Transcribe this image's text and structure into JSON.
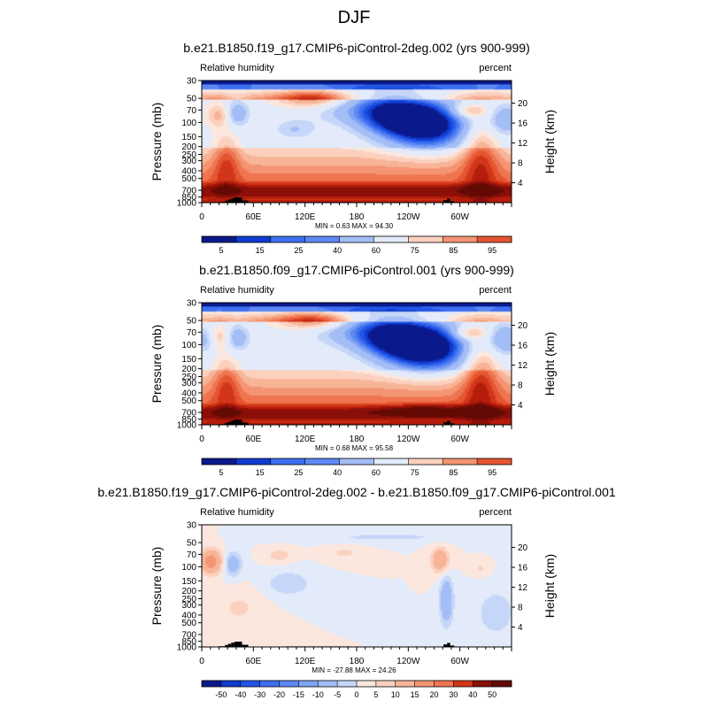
{
  "figure": {
    "title": "DJF"
  },
  "chart_data": [
    {
      "type": "heatmap",
      "title": "b.e21.B1850.f19_g17.CMIP6-piControl-2deg.002 (yrs 900-999)",
      "left_label": "Relative humidity",
      "right_label": "percent",
      "ylabel": "Pressure (mb)",
      "ylabel_right": "Height (km)",
      "x_ticks": [
        "0",
        "60E",
        "120E",
        "180",
        "120W",
        "60W"
      ],
      "y_ticks": [
        "30",
        "50",
        "70",
        "100",
        "150",
        "200",
        "250",
        "300",
        "400",
        "500",
        "700",
        "850",
        "1000"
      ],
      "y_ticks_right": [
        "20",
        "16",
        "12",
        "8",
        "4"
      ],
      "stats": "MIN =  0.63  MAX =  94.30",
      "colorbar_levels": [
        "5",
        "15",
        "25",
        "40",
        "60",
        "75",
        "85",
        "95"
      ],
      "colors": [
        "#0a1a8c",
        "#0f3bcf",
        "#2155e6",
        "#3d6ff0",
        "#5d89f4",
        "#7fa3f6",
        "#a3bdf7",
        "#c6d6f8",
        "#e3ebfa",
        "#fbe7de",
        "#fbd0bd",
        "#f8b497",
        "#f49472",
        "#ef7450",
        "#e45530",
        "#d13618",
        "#b41c0b",
        "#8a0f08",
        "#640a05"
      ],
      "fields": [
        {
          "name": "blob",
          "x": 0.73,
          "y": 0.37,
          "sx": 0.09,
          "sy": 0.13,
          "a": -58
        },
        {
          "name": "blob",
          "x": 0.62,
          "y": 0.3,
          "sx": 0.08,
          "sy": 0.11,
          "a": -35
        },
        {
          "name": "blob",
          "x": 0.55,
          "y": 0.22,
          "sx": 0.12,
          "sy": 0.1,
          "a": -22
        },
        {
          "name": "blob",
          "x": 0.11,
          "y": 0.27,
          "sx": 0.03,
          "sy": 0.08,
          "a": -22
        },
        {
          "name": "blob",
          "x": 0.98,
          "y": 0.32,
          "sx": 0.04,
          "sy": 0.09,
          "a": -20
        },
        {
          "name": "blob",
          "x": 0.3,
          "y": 0.4,
          "sx": 0.05,
          "sy": 0.06,
          "a": -12
        },
        {
          "name": "blob",
          "x": 0.36,
          "y": 0.15,
          "sx": 0.08,
          "sy": 0.05,
          "a": 25
        },
        {
          "name": "blob",
          "x": 0.86,
          "y": 0.25,
          "sx": 0.04,
          "sy": 0.04,
          "a": 20
        },
        {
          "name": "blob",
          "x": 0.06,
          "y": 0.28,
          "sx": 0.03,
          "sy": 0.07,
          "a": 18
        },
        {
          "name": "blob",
          "x": 0.9,
          "y": 0.62,
          "sx": 0.04,
          "sy": 0.22,
          "a": 22
        },
        {
          "name": "blob",
          "x": 0.08,
          "y": 0.66,
          "sx": 0.03,
          "sy": 0.16,
          "a": 18
        }
      ],
      "terrain": [
        {
          "from": 0.055,
          "to": 0.075,
          "p": 980
        },
        {
          "from": 0.075,
          "to": 0.085,
          "p": 945
        },
        {
          "from": 0.085,
          "to": 0.095,
          "p": 915
        },
        {
          "from": 0.095,
          "to": 0.105,
          "p": 885
        },
        {
          "from": 0.105,
          "to": 0.13,
          "p": 860
        },
        {
          "from": 0.13,
          "to": 0.15,
          "p": 940
        },
        {
          "from": 0.27,
          "to": 0.48,
          "p": 985
        },
        {
          "from": 0.78,
          "to": 0.792,
          "p": 930
        },
        {
          "from": 0.792,
          "to": 0.802,
          "p": 890
        },
        {
          "from": 0.802,
          "to": 0.815,
          "p": 960
        }
      ]
    },
    {
      "type": "heatmap",
      "title": "b.e21.B1850.f09_g17.CMIP6-piControl.001 (yrs 900-999)",
      "left_label": "Relative humidity",
      "right_label": "percent",
      "ylabel": "Pressure (mb)",
      "ylabel_right": "Height (km)",
      "x_ticks": [
        "0",
        "60E",
        "120E",
        "180",
        "120W",
        "60W"
      ],
      "y_ticks": [
        "30",
        "50",
        "70",
        "100",
        "150",
        "200",
        "250",
        "300",
        "400",
        "500",
        "700",
        "850",
        "1000"
      ],
      "y_ticks_right": [
        "20",
        "16",
        "12",
        "8",
        "4"
      ],
      "stats": "MIN =  0.68  MAX =  95.58",
      "colorbar_levels": [
        "5",
        "15",
        "25",
        "40",
        "60",
        "75",
        "85",
        "95"
      ],
      "colors": [
        "#0a1a8c",
        "#0f3bcf",
        "#2155e6",
        "#3d6ff0",
        "#5d89f4",
        "#7fa3f6",
        "#a3bdf7",
        "#c6d6f8",
        "#e3ebfa",
        "#fbe7de",
        "#fbd0bd",
        "#f8b497",
        "#f49472",
        "#ef7450",
        "#e45530",
        "#d13618",
        "#b41c0b",
        "#8a0f08",
        "#640a05"
      ],
      "fields": [
        {
          "name": "blob",
          "x": 0.73,
          "y": 0.37,
          "sx": 0.09,
          "sy": 0.13,
          "a": -62
        },
        {
          "name": "blob",
          "x": 0.62,
          "y": 0.3,
          "sx": 0.08,
          "sy": 0.11,
          "a": -38
        },
        {
          "name": "blob",
          "x": 0.54,
          "y": 0.22,
          "sx": 0.12,
          "sy": 0.1,
          "a": -24
        },
        {
          "name": "blob",
          "x": 0.11,
          "y": 0.29,
          "sx": 0.03,
          "sy": 0.08,
          "a": -22
        },
        {
          "name": "blob",
          "x": 0.01,
          "y": 0.3,
          "sx": 0.03,
          "sy": 0.08,
          "a": -18
        },
        {
          "name": "blob",
          "x": 0.98,
          "y": 0.3,
          "sx": 0.04,
          "sy": 0.09,
          "a": -22
        },
        {
          "name": "blob",
          "x": 0.36,
          "y": 0.15,
          "sx": 0.08,
          "sy": 0.05,
          "a": 25
        },
        {
          "name": "blob",
          "x": 0.86,
          "y": 0.25,
          "sx": 0.04,
          "sy": 0.04,
          "a": 20
        },
        {
          "name": "blob",
          "x": 0.06,
          "y": 0.28,
          "sx": 0.03,
          "sy": 0.07,
          "a": 18
        },
        {
          "name": "blob",
          "x": 0.9,
          "y": 0.62,
          "sx": 0.04,
          "sy": 0.22,
          "a": 24
        },
        {
          "name": "blob",
          "x": 0.08,
          "y": 0.66,
          "sx": 0.03,
          "sy": 0.16,
          "a": 18
        },
        {
          "name": "blob",
          "x": 0.72,
          "y": 0.88,
          "sx": 0.1,
          "sy": 0.04,
          "a": 10
        }
      ],
      "terrain": [
        {
          "from": 0.055,
          "to": 0.075,
          "p": 980
        },
        {
          "from": 0.075,
          "to": 0.085,
          "p": 945
        },
        {
          "from": 0.085,
          "to": 0.095,
          "p": 915
        },
        {
          "from": 0.095,
          "to": 0.105,
          "p": 885
        },
        {
          "from": 0.105,
          "to": 0.13,
          "p": 860
        },
        {
          "from": 0.13,
          "to": 0.15,
          "p": 940
        },
        {
          "from": 0.27,
          "to": 0.48,
          "p": 985
        },
        {
          "from": 0.78,
          "to": 0.792,
          "p": 930
        },
        {
          "from": 0.792,
          "to": 0.802,
          "p": 890
        },
        {
          "from": 0.802,
          "to": 0.815,
          "p": 960
        }
      ]
    },
    {
      "type": "heatmap",
      "title": "b.e21.B1850.f19_g17.CMIP6-piControl-2deg.002 - b.e21.B1850.f09_g17.CMIP6-piControl.001",
      "left_label": "Relative humidity",
      "right_label": "percent",
      "ylabel": "Pressure (mb)",
      "ylabel_right": "Height (km)",
      "x_ticks": [
        "0",
        "60E",
        "120E",
        "180",
        "120W",
        "60W"
      ],
      "y_ticks": [
        "30",
        "50",
        "70",
        "100",
        "150",
        "200",
        "250",
        "300",
        "400",
        "500",
        "700",
        "850",
        "1000"
      ],
      "y_ticks_right": [
        "20",
        "16",
        "12",
        "8",
        "4"
      ],
      "stats": "MIN = -27.88  MAX =  24.26",
      "colorbar_levels": [
        "-50",
        "-40",
        "-30",
        "-20",
        "-15",
        "-10",
        "-5",
        "0",
        "5",
        "10",
        "15",
        "20",
        "30",
        "40",
        "50"
      ],
      "colors": [
        "#0a1a8c",
        "#0f3bcf",
        "#2155e6",
        "#3d6ff0",
        "#5d89f4",
        "#7fa3f6",
        "#a3bdf7",
        "#c6d6f8",
        "#e3ebfa",
        "#fbe7de",
        "#fbd0bd",
        "#f8b497",
        "#f49472",
        "#ef7450",
        "#e45530",
        "#d13618",
        "#b41c0b",
        "#8a0f08",
        "#640a05"
      ],
      "fields": [
        {
          "name": "blob",
          "x": 0.03,
          "y": 0.3,
          "sx": 0.025,
          "sy": 0.07,
          "a": 13
        },
        {
          "name": "blob",
          "x": 0.77,
          "y": 0.29,
          "sx": 0.02,
          "sy": 0.07,
          "a": 10
        },
        {
          "name": "blob",
          "x": 0.25,
          "y": 0.25,
          "sx": 0.03,
          "sy": 0.04,
          "a": 4
        },
        {
          "name": "blob",
          "x": 0.46,
          "y": 0.23,
          "sx": 0.04,
          "sy": 0.04,
          "a": 3
        },
        {
          "name": "blob",
          "x": 0.9,
          "y": 0.36,
          "sx": 0.02,
          "sy": 0.04,
          "a": 3
        },
        {
          "name": "blob",
          "x": 0.12,
          "y": 0.68,
          "sx": 0.05,
          "sy": 0.1,
          "a": 3
        },
        {
          "name": "blob",
          "x": 0.1,
          "y": 0.32,
          "sx": 0.02,
          "sy": 0.07,
          "a": -8
        },
        {
          "name": "blob",
          "x": 0.79,
          "y": 0.62,
          "sx": 0.015,
          "sy": 0.14,
          "a": -10
        },
        {
          "name": "blob",
          "x": 0.28,
          "y": 0.48,
          "sx": 0.05,
          "sy": 0.07,
          "a": -5
        },
        {
          "name": "blob",
          "x": 0.6,
          "y": 0.1,
          "sx": 0.2,
          "sy": 0.03,
          "a": -3
        },
        {
          "name": "blob",
          "x": 0.95,
          "y": 0.72,
          "sx": 0.05,
          "sy": 0.15,
          "a": -4
        }
      ],
      "terrain": [
        {
          "from": 0.055,
          "to": 0.075,
          "p": 980
        },
        {
          "from": 0.075,
          "to": 0.085,
          "p": 945
        },
        {
          "from": 0.085,
          "to": 0.095,
          "p": 915
        },
        {
          "from": 0.095,
          "to": 0.105,
          "p": 885
        },
        {
          "from": 0.105,
          "to": 0.13,
          "p": 860
        },
        {
          "from": 0.13,
          "to": 0.15,
          "p": 940
        },
        {
          "from": 0.27,
          "to": 0.48,
          "p": 985
        },
        {
          "from": 0.78,
          "to": 0.792,
          "p": 930
        },
        {
          "from": 0.792,
          "to": 0.802,
          "p": 890
        },
        {
          "from": 0.802,
          "to": 0.815,
          "p": 960
        }
      ]
    }
  ]
}
